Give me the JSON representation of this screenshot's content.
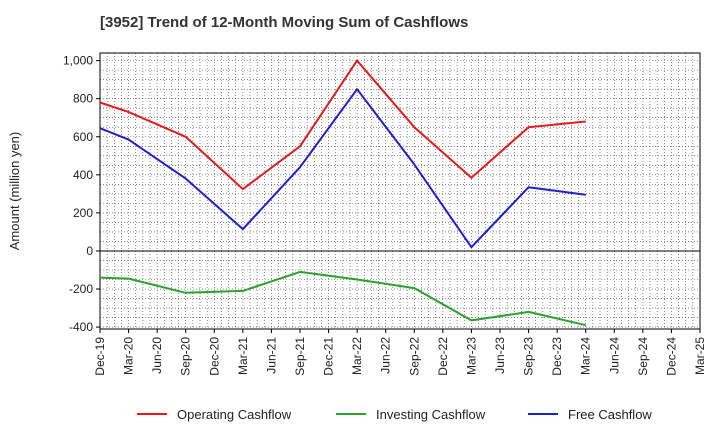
{
  "chart_data": {
    "type": "line",
    "title": "[3952]  Trend of 12-Month Moving Sum of Cashflows",
    "xlabel": "",
    "ylabel": "Amount (million yen)",
    "categories": [
      "Dec-19",
      "Mar-20",
      "Jun-20",
      "Sep-20",
      "Dec-20",
      "Mar-21",
      "Jun-21",
      "Sep-21",
      "Dec-21",
      "Mar-22",
      "Jun-22",
      "Sep-22",
      "Dec-22",
      "Mar-23",
      "Jun-23",
      "Sep-23",
      "Dec-23",
      "Mar-24",
      "Jun-24",
      "Sep-24",
      "Dec-24",
      "Mar-25"
    ],
    "ylim": [
      -410,
      1040
    ],
    "yticks": [
      -400,
      -200,
      0,
      200,
      400,
      600,
      800,
      1000
    ],
    "ytick_labels": [
      "-400",
      "-200",
      "0",
      "200",
      "400",
      "600",
      "800",
      "1,000"
    ],
    "grid": true,
    "legend_position": "bottom",
    "series": [
      {
        "name": "Operating Cashflow",
        "color": "#e41a1c",
        "values": [
          780,
          730,
          null,
          600,
          null,
          325,
          null,
          550,
          null,
          1000,
          null,
          650,
          null,
          385,
          null,
          650,
          null,
          680,
          null,
          null,
          null,
          null
        ]
      },
      {
        "name": "Investing Cashflow",
        "color": "#2ca02c",
        "values": [
          -140,
          -145,
          null,
          -220,
          null,
          -210,
          null,
          -110,
          null,
          -150,
          null,
          -195,
          null,
          -365,
          null,
          -320,
          null,
          -390,
          null,
          null,
          null,
          null
        ]
      },
      {
        "name": "Free Cashflow",
        "color": "#1f1fcc",
        "values": [
          645,
          585,
          null,
          380,
          null,
          115,
          null,
          440,
          null,
          850,
          null,
          455,
          null,
          20,
          null,
          335,
          null,
          295,
          null,
          null,
          null,
          null
        ]
      }
    ]
  }
}
